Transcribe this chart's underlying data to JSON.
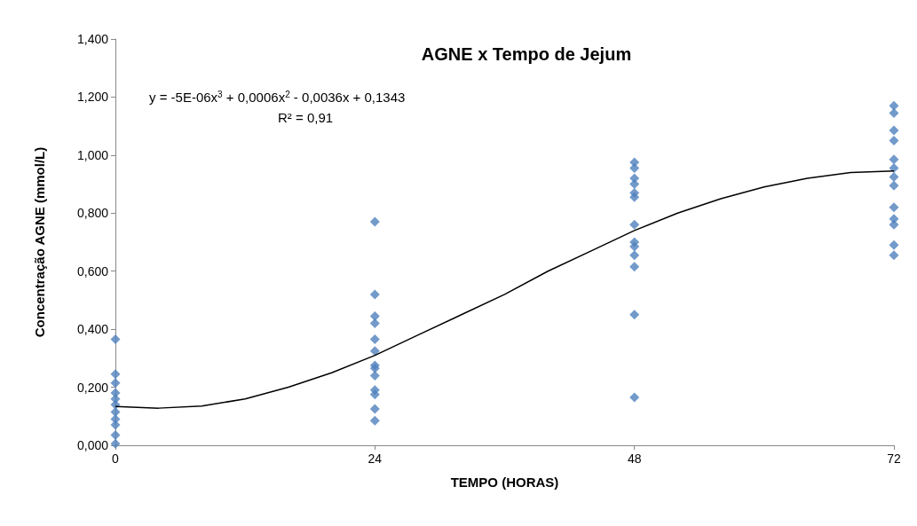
{
  "chart_data": {
    "type": "scatter",
    "title": "AGNE x Tempo de Jejum",
    "xlabel": "TEMPO (HORAS)",
    "ylabel": "Concentração AGNE (mmol/L)",
    "annotations": [
      "y = -5E-06x$^{3}$ + 0,0006x$^{2}$ - 0,0036x + 0,1343",
      "R² = 0,91"
    ],
    "xlim": [
      0,
      72
    ],
    "xticks": [
      0,
      24,
      48,
      72
    ],
    "ylim": [
      0,
      1.4
    ],
    "yticks": [
      {
        "value": 0,
        "label": "0,000"
      },
      {
        "value": 0.2,
        "label": "0,200"
      },
      {
        "value": 0.4,
        "label": "0,400"
      },
      {
        "value": 0.6,
        "label": "0,600"
      },
      {
        "value": 0.8,
        "label": "0,800"
      },
      {
        "value": 1.0,
        "label": "1,000"
      },
      {
        "value": 1.2,
        "label": "1,200"
      },
      {
        "value": 1.4,
        "label": "1,400"
      }
    ],
    "grid": false,
    "series": [
      {
        "color": "#4f81bd",
        "marker": "diamond",
        "x": [
          0,
          0,
          0,
          0,
          0,
          0,
          0,
          0,
          0,
          0,
          0,
          24,
          24,
          24,
          24,
          24,
          24,
          24,
          24,
          24,
          24,
          24,
          24,
          24,
          48,
          48,
          48,
          48,
          48,
          48,
          48,
          48,
          48,
          48,
          48,
          48,
          48,
          72,
          72,
          72,
          72,
          72,
          72,
          72,
          72,
          72,
          72,
          72,
          72,
          72
        ],
        "values": [
          0.365,
          0.245,
          0.215,
          0.18,
          0.16,
          0.14,
          0.115,
          0.09,
          0.07,
          0.035,
          0.005,
          0.77,
          0.52,
          0.445,
          0.42,
          0.365,
          0.325,
          0.275,
          0.265,
          0.24,
          0.19,
          0.175,
          0.125,
          0.085,
          0.975,
          0.955,
          0.92,
          0.9,
          0.87,
          0.855,
          0.76,
          0.7,
          0.685,
          0.655,
          0.615,
          0.45,
          0.165,
          1.17,
          1.145,
          1.085,
          1.05,
          0.985,
          0.955,
          0.925,
          0.895,
          0.82,
          0.78,
          0.76,
          0.69,
          0.655
        ]
      },
      {
        "type": "line",
        "color": "#000000",
        "marker": "none",
        "line_style": "solid",
        "x": [
          0,
          4,
          8,
          12,
          16,
          20,
          24,
          28,
          32,
          36,
          40,
          44,
          48,
          52,
          56,
          60,
          64,
          68,
          72
        ],
        "values": [
          0.134,
          0.128,
          0.135,
          0.16,
          0.2,
          0.25,
          0.31,
          0.38,
          0.45,
          0.52,
          0.6,
          0.67,
          0.74,
          0.8,
          0.85,
          0.89,
          0.92,
          0.94,
          0.945
        ]
      }
    ]
  }
}
